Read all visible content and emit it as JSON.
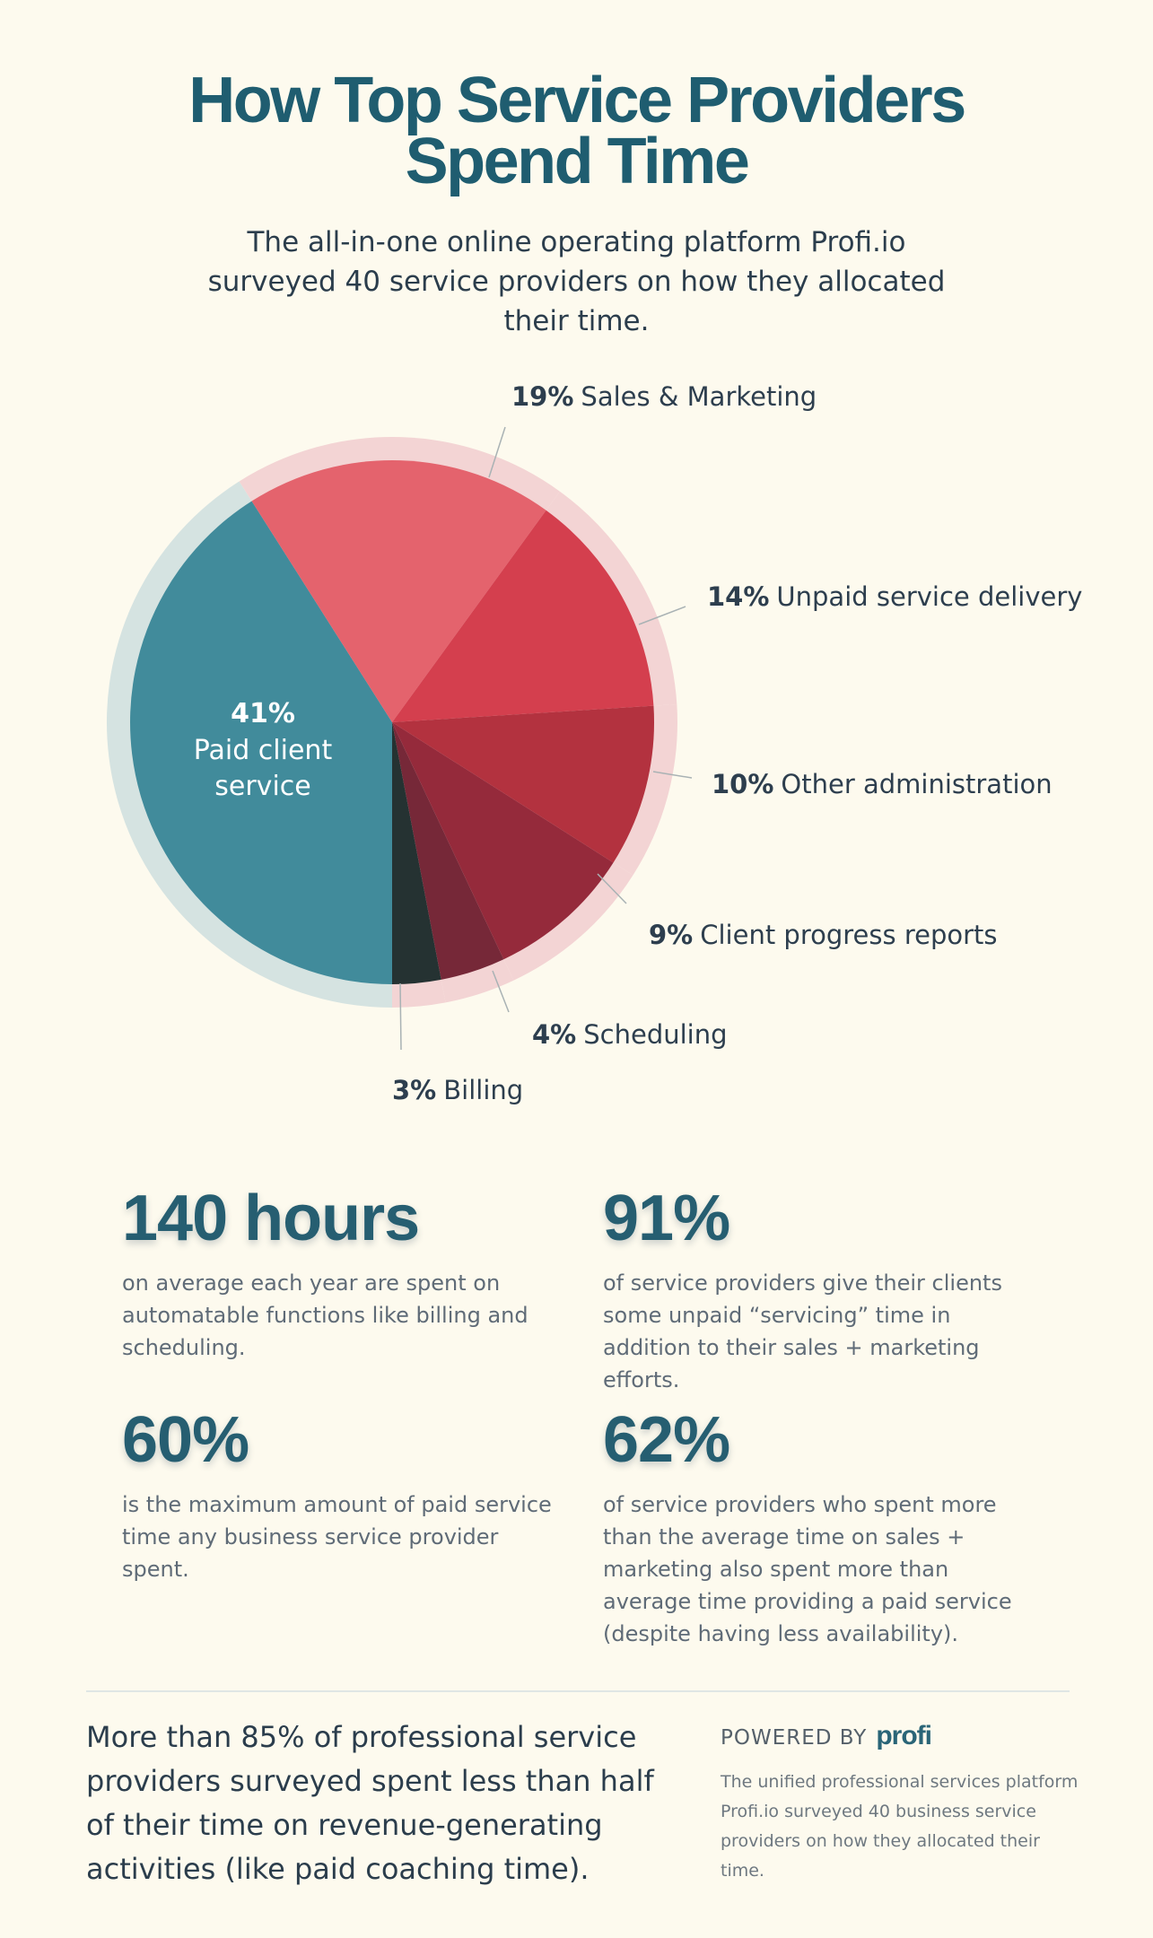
{
  "header": {
    "title_line1": "How Top Service Providers",
    "title_line2": "Spend Time",
    "subtitle": "The all-in-one online operating platform Profi.io surveyed 40 service providers on how they allocated their time."
  },
  "chart_data": {
    "type": "pie",
    "unit": "%",
    "slices": [
      {
        "label": "Paid client service",
        "value": 41,
        "color": "#418b9b"
      },
      {
        "label": "Sales & Marketing",
        "value": 19,
        "color": "#e4636d"
      },
      {
        "label": "Unpaid service delivery",
        "value": 14,
        "color": "#d43f4e"
      },
      {
        "label": "Other administration",
        "value": 10,
        "color": "#b3323f"
      },
      {
        "label": "Client progress reports",
        "value": 9,
        "color": "#952a3b"
      },
      {
        "label": "Scheduling",
        "value": 4,
        "color": "#762838"
      },
      {
        "label": "Billing",
        "value": 3,
        "color": "#253232"
      }
    ],
    "inside_label": {
      "value_text": "41%",
      "line1": "Paid client",
      "line2": "service"
    },
    "outer_labels": [
      {
        "value_text": "19%",
        "label": "Sales & Marketing"
      },
      {
        "value_text": "14%",
        "label": "Unpaid service delivery"
      },
      {
        "value_text": "10%",
        "label": "Other administration"
      },
      {
        "value_text": "9%",
        "label": "Client progress reports"
      },
      {
        "value_text": "4%",
        "label": "Scheduling"
      },
      {
        "value_text": "3%",
        "label": "Billing"
      }
    ]
  },
  "stats": [
    {
      "value": "140 hours",
      "description": "on average each year are spent on automatable functions like billing and scheduling."
    },
    {
      "value": "91%",
      "description": "of service providers give their clients some unpaid “servicing” time in addition to their sales + marketing efforts."
    },
    {
      "value": "60%",
      "description": "is the maximum amount of paid service time any business service provider spent."
    },
    {
      "value": "62%",
      "description": "of service providers who spent more than the average time on sales + marketing also spent more than average time providing a paid service (despite having less availability)."
    }
  ],
  "footer": {
    "summary": "More than 85% of professional service providers surveyed spent less than half of their time on revenue-generating activities (like paid coaching time).",
    "powered_by": "POWERED BY",
    "logo_text": "profi",
    "note": "The unified professional services platform Profi.io surveyed 40 business service providers on how they allocated their time."
  }
}
